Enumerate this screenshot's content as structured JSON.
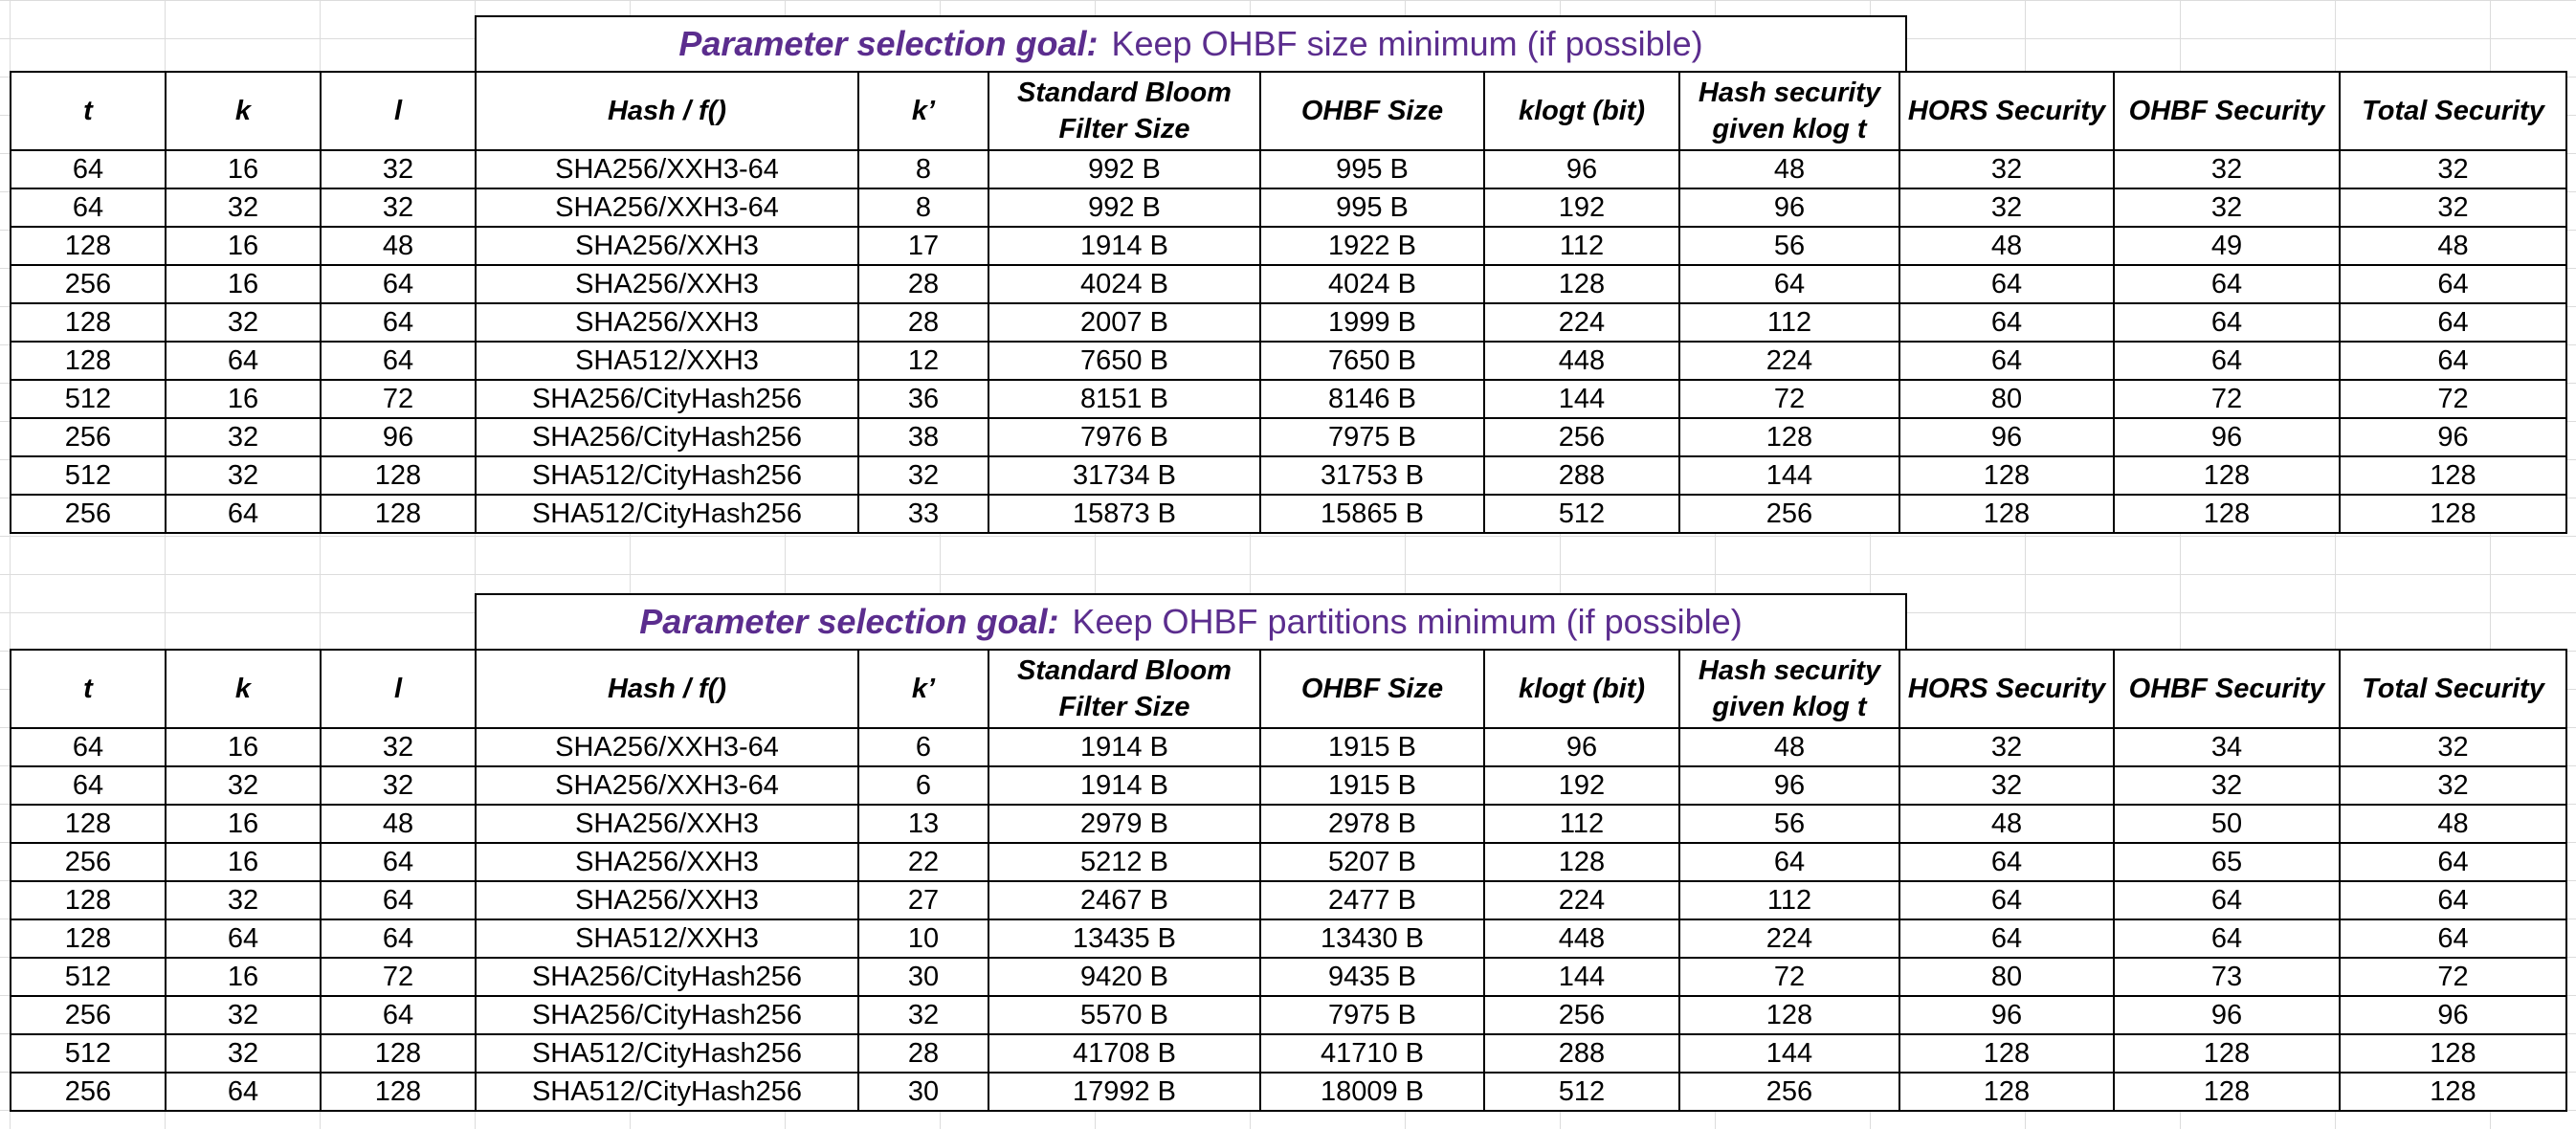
{
  "columns": [
    "t",
    "k",
    "l",
    "Hash / f()",
    "k’",
    "Standard Bloom Filter Size",
    "OHBF Size",
    "klogt (bit)",
    "Hash security given klog t",
    "HORS Security",
    "OHBF Security",
    "Total Security"
  ],
  "tables": [
    {
      "goal_label": "Parameter selection goal:",
      "goal_text": "Keep OHBF size minimum (if possible)",
      "rows": [
        [
          "64",
          "16",
          "32",
          "SHA256/XXH3-64",
          "8",
          "992 B",
          "995 B",
          "96",
          "48",
          "32",
          "32",
          "32"
        ],
        [
          "64",
          "32",
          "32",
          "SHA256/XXH3-64",
          "8",
          "992 B",
          "995 B",
          "192",
          "96",
          "32",
          "32",
          "32"
        ],
        [
          "128",
          "16",
          "48",
          "SHA256/XXH3",
          "17",
          "1914 B",
          "1922 B",
          "112",
          "56",
          "48",
          "49",
          "48"
        ],
        [
          "256",
          "16",
          "64",
          "SHA256/XXH3",
          "28",
          "4024 B",
          "4024 B",
          "128",
          "64",
          "64",
          "64",
          "64"
        ],
        [
          "128",
          "32",
          "64",
          "SHA256/XXH3",
          "28",
          "2007 B",
          "1999 B",
          "224",
          "112",
          "64",
          "64",
          "64"
        ],
        [
          "128",
          "64",
          "64",
          "SHA512/XXH3",
          "12",
          "7650 B",
          "7650 B",
          "448",
          "224",
          "64",
          "64",
          "64"
        ],
        [
          "512",
          "16",
          "72",
          "SHA256/CityHash256",
          "36",
          "8151 B",
          "8146 B",
          "144",
          "72",
          "80",
          "72",
          "72"
        ],
        [
          "256",
          "32",
          "96",
          "SHA256/CityHash256",
          "38",
          "7976 B",
          "7975 B",
          "256",
          "128",
          "96",
          "96",
          "96"
        ],
        [
          "512",
          "32",
          "128",
          "SHA512/CityHash256",
          "32",
          "31734 B",
          "31753 B",
          "288",
          "144",
          "128",
          "128",
          "128"
        ],
        [
          "256",
          "64",
          "128",
          "SHA512/CityHash256",
          "33",
          "15873 B",
          "15865 B",
          "512",
          "256",
          "128",
          "128",
          "128"
        ]
      ]
    },
    {
      "goal_label": "Parameter selection goal:",
      "goal_text": "Keep OHBF partitions minimum (if possible)",
      "rows": [
        [
          "64",
          "16",
          "32",
          "SHA256/XXH3-64",
          "6",
          "1914 B",
          "1915 B",
          "96",
          "48",
          "32",
          "34",
          "32"
        ],
        [
          "64",
          "32",
          "32",
          "SHA256/XXH3-64",
          "6",
          "1914 B",
          "1915 B",
          "192",
          "96",
          "32",
          "32",
          "32"
        ],
        [
          "128",
          "16",
          "48",
          "SHA256/XXH3",
          "13",
          "2979 B",
          "2978 B",
          "112",
          "56",
          "48",
          "50",
          "48"
        ],
        [
          "256",
          "16",
          "64",
          "SHA256/XXH3",
          "22",
          "5212 B",
          "5207 B",
          "128",
          "64",
          "64",
          "65",
          "64"
        ],
        [
          "128",
          "32",
          "64",
          "SHA256/XXH3",
          "27",
          "2467 B",
          "2477 B",
          "224",
          "112",
          "64",
          "64",
          "64"
        ],
        [
          "128",
          "64",
          "64",
          "SHA512/XXH3",
          "10",
          "13435 B",
          "13430 B",
          "448",
          "224",
          "64",
          "64",
          "64"
        ],
        [
          "512",
          "16",
          "72",
          "SHA256/CityHash256",
          "30",
          "9420 B",
          "9435 B",
          "144",
          "72",
          "80",
          "73",
          "72"
        ],
        [
          "256",
          "32",
          "64",
          "SHA256/CityHash256",
          "32",
          "5570 B",
          "7975 B",
          "256",
          "128",
          "96",
          "96",
          "96"
        ],
        [
          "512",
          "32",
          "128",
          "SHA512/CityHash256",
          "28",
          "41708 B",
          "41710 B",
          "288",
          "144",
          "128",
          "128",
          "128"
        ],
        [
          "256",
          "64",
          "128",
          "SHA512/CityHash256",
          "30",
          "17992 B",
          "18009 B",
          "512",
          "256",
          "128",
          "128",
          "128"
        ]
      ]
    }
  ]
}
